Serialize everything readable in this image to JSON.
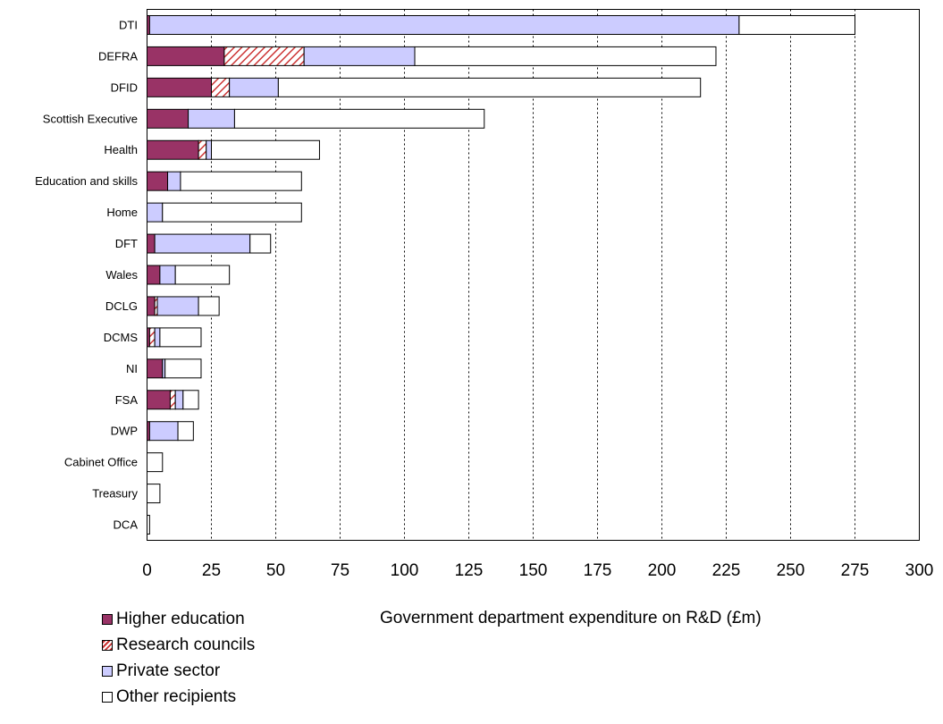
{
  "chart_data": {
    "type": "bar",
    "orientation": "horizontal",
    "stacked": true,
    "categories": [
      "DTI",
      "DEFRA",
      "DFID",
      "Scottish Executive",
      "Health",
      "Education and skills",
      "Home",
      "DFT",
      "Wales",
      "DCLG",
      "DCMS",
      "NI",
      "FSA",
      "DWP",
      "Cabinet Office",
      "Treasury",
      "DCA"
    ],
    "series": [
      {
        "name": "Higher education",
        "color": "#993366",
        "pattern": "solid",
        "values": [
          1,
          30,
          25,
          16,
          20,
          8,
          0,
          3,
          5,
          3,
          1,
          6,
          9,
          1,
          0,
          0,
          0
        ]
      },
      {
        "name": "Research councils",
        "color": "#cc3333",
        "pattern": "hatch",
        "values": [
          0,
          31,
          7,
          0,
          3,
          0,
          0,
          0,
          0,
          1,
          2,
          0,
          2,
          0,
          0,
          0,
          0
        ]
      },
      {
        "name": "Private sector",
        "color": "#ccccff",
        "pattern": "solid",
        "values": [
          229,
          43,
          19,
          18,
          2,
          5,
          6,
          37,
          6,
          16,
          2,
          1,
          3,
          11,
          0,
          0,
          0
        ]
      },
      {
        "name": "Other recipients",
        "color": "#ffffff",
        "pattern": "solid",
        "values": [
          45,
          117,
          164,
          97,
          42,
          47,
          54,
          8,
          21,
          8,
          16,
          14,
          6,
          6,
          6,
          5,
          1
        ]
      }
    ],
    "xlabel": "Government department expenditure on R&D (£m)",
    "xlim": [
      0,
      300
    ],
    "xticks": [
      0,
      25,
      50,
      75,
      100,
      125,
      150,
      175,
      200,
      225,
      250,
      275,
      300
    ],
    "grid": "vertical dotted",
    "legend_position": "bottom-left"
  }
}
